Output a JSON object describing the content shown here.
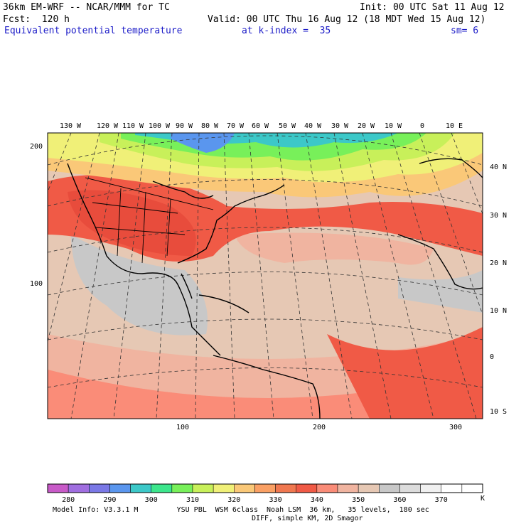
{
  "header": {
    "model": "36km EM-WRF -- NCAR/MMM for TC",
    "init": "Init: 00 UTC Sat 11 Aug 12",
    "fcst": "Fcst:  120 h",
    "valid": "Valid: 00 UTC Thu 16 Aug 12 (18 MDT Wed 15 Aug 12)",
    "field": "Equivalent potential temperature",
    "kindex": "at k-index =  35",
    "sm": "sm= 6"
  },
  "map": {
    "lon_labels": [
      "130 W",
      "120 W",
      "110 W",
      "100 W",
      "90 W",
      "80 W",
      "70 W",
      "60 W",
      "50 W",
      "40 W",
      "30 W",
      "20 W",
      "10 W",
      "0",
      "10 E"
    ],
    "lat_labels": [
      "40 N",
      "30 N",
      "20 N",
      "10 N",
      "0",
      "10 S"
    ],
    "grid_y_labels": [
      "200",
      "100"
    ],
    "grid_x_labels": [
      "100",
      "200",
      "300"
    ]
  },
  "colorbar": {
    "labels": [
      "280",
      "290",
      "300",
      "310",
      "320",
      "330",
      "340",
      "350",
      "360",
      "370"
    ],
    "unit": "K",
    "colors": [
      "#c85ac8",
      "#a06ee0",
      "#7a78e6",
      "#5a96ee",
      "#3cc8c8",
      "#3ce68c",
      "#78f05a",
      "#c8f05a",
      "#f0f078",
      "#fac878",
      "#faa064",
      "#f07850",
      "#f05a46",
      "#fa8c78",
      "#f0b4a0",
      "#e6c8b4",
      "#c8c8c8",
      "#dcdcdc",
      "#f0f0f0",
      "#ffffff",
      "#ffffff"
    ]
  },
  "footer": {
    "line1": "Model Info: V3.3.1 M         YSU PBL  WSM 6class  Noah LSM  36 km,   35 levels,  180 sec",
    "line2": "DIFF, simple KM, 2D Smagor"
  }
}
